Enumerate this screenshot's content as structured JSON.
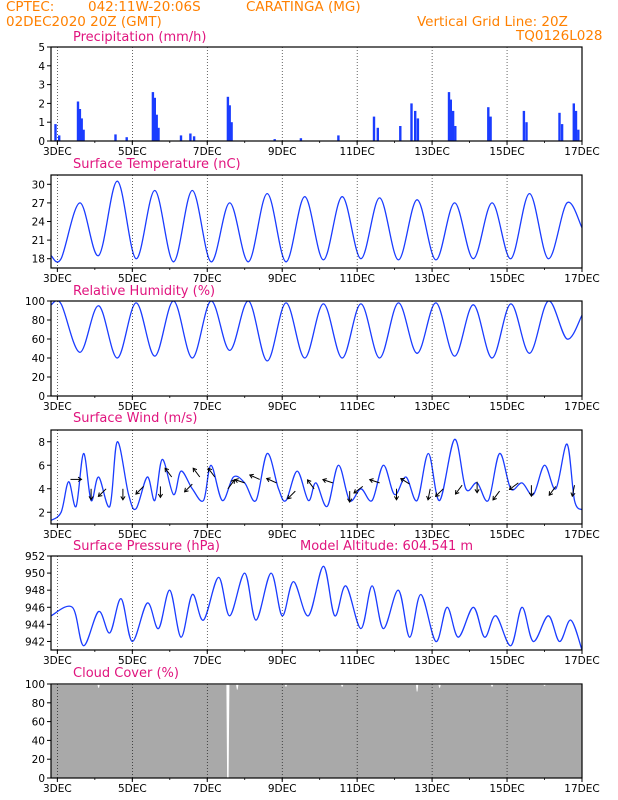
{
  "header": {
    "source": "CPTEC:",
    "coords": "042:11W-20:06S",
    "station": "CARATINGA (MG)",
    "init_time": "02DEC2020 20Z (GMT)",
    "grid_note": "Vertical Grid Line: 20Z",
    "run_code": "TQ0126L028"
  },
  "colors": {
    "header": "#ff8000",
    "title": "#e0147e",
    "series": "#1a3cff",
    "cloud": "#a9a9a9",
    "grid": "#000000"
  },
  "chart_data": [
    {
      "id": "precip",
      "type": "bar",
      "title": "Precipitation (mm/h)",
      "ylim": [
        0,
        5
      ],
      "yticks": [
        0,
        1,
        2,
        3,
        4,
        5
      ],
      "xticks": [
        "3DEC",
        "5DEC",
        "7DEC",
        "9DEC",
        "11DEC",
        "13DEC",
        "15DEC",
        "17DEC"
      ],
      "xrange_days": [
        2.83,
        17.0
      ],
      "events": [
        {
          "x": 2.95,
          "v": 0.9
        },
        {
          "x": 3.05,
          "v": 0.3
        },
        {
          "x": 3.55,
          "v": 2.1
        },
        {
          "x": 3.6,
          "v": 1.7
        },
        {
          "x": 3.65,
          "v": 1.2
        },
        {
          "x": 3.7,
          "v": 0.6
        },
        {
          "x": 4.55,
          "v": 0.35
        },
        {
          "x": 4.85,
          "v": 0.2
        },
        {
          "x": 5.55,
          "v": 2.6
        },
        {
          "x": 5.6,
          "v": 2.3
        },
        {
          "x": 5.65,
          "v": 1.4
        },
        {
          "x": 5.7,
          "v": 0.7
        },
        {
          "x": 6.3,
          "v": 0.3
        },
        {
          "x": 6.55,
          "v": 0.4
        },
        {
          "x": 6.65,
          "v": 0.25
        },
        {
          "x": 7.55,
          "v": 2.35
        },
        {
          "x": 7.6,
          "v": 1.9
        },
        {
          "x": 7.65,
          "v": 1.0
        },
        {
          "x": 8.8,
          "v": 0.1
        },
        {
          "x": 9.5,
          "v": 0.15
        },
        {
          "x": 10.5,
          "v": 0.3
        },
        {
          "x": 11.45,
          "v": 1.3
        },
        {
          "x": 11.55,
          "v": 0.7
        },
        {
          "x": 12.15,
          "v": 0.8
        },
        {
          "x": 12.45,
          "v": 2.0
        },
        {
          "x": 12.55,
          "v": 1.6
        },
        {
          "x": 12.62,
          "v": 1.2
        },
        {
          "x": 13.45,
          "v": 2.6
        },
        {
          "x": 13.5,
          "v": 2.2
        },
        {
          "x": 13.56,
          "v": 1.6
        },
        {
          "x": 13.62,
          "v": 0.8
        },
        {
          "x": 14.5,
          "v": 1.8
        },
        {
          "x": 14.56,
          "v": 1.3
        },
        {
          "x": 15.45,
          "v": 1.6
        },
        {
          "x": 15.52,
          "v": 1.0
        },
        {
          "x": 16.4,
          "v": 1.5
        },
        {
          "x": 16.47,
          "v": 0.9
        },
        {
          "x": 16.78,
          "v": 2.0
        },
        {
          "x": 16.84,
          "v": 1.6
        },
        {
          "x": 16.9,
          "v": 0.6
        }
      ]
    },
    {
      "id": "temperature",
      "type": "line",
      "title": "Surface Temperature (nC)",
      "ylim": [
        16.5,
        31.5
      ],
      "yticks": [
        18,
        21,
        24,
        27,
        30
      ],
      "xticks": [
        "3DEC",
        "5DEC",
        "7DEC",
        "9DEC",
        "11DEC",
        "13DEC",
        "15DEC",
        "17DEC"
      ],
      "xrange_days": [
        2.83,
        17.0
      ],
      "extremes": [
        [
          2.83,
          18.5
        ],
        [
          3.1,
          18.0
        ],
        [
          3.6,
          27.0
        ],
        [
          4.1,
          18.5
        ],
        [
          4.6,
          30.5
        ],
        [
          5.1,
          18.0
        ],
        [
          5.6,
          29.0
        ],
        [
          6.1,
          17.5
        ],
        [
          6.6,
          29.0
        ],
        [
          7.1,
          17.5
        ],
        [
          7.6,
          27.0
        ],
        [
          8.1,
          17.5
        ],
        [
          8.6,
          28.5
        ],
        [
          9.1,
          17.5
        ],
        [
          9.6,
          28.0
        ],
        [
          10.1,
          17.8
        ],
        [
          10.6,
          28.0
        ],
        [
          11.1,
          18.0
        ],
        [
          11.6,
          27.8
        ],
        [
          12.1,
          17.8
        ],
        [
          12.6,
          27.5
        ],
        [
          13.1,
          17.8
        ],
        [
          13.6,
          27.0
        ],
        [
          14.1,
          18.0
        ],
        [
          14.6,
          27.0
        ],
        [
          15.1,
          18.0
        ],
        [
          15.6,
          28.5
        ],
        [
          16.1,
          18.0
        ],
        [
          16.6,
          27.0
        ],
        [
          17.0,
          23.0
        ]
      ]
    },
    {
      "id": "humidity",
      "type": "line",
      "title": "Relative Humidity (%)",
      "ylim": [
        0,
        100
      ],
      "yticks": [
        0,
        20,
        40,
        60,
        80,
        100
      ],
      "xticks": [
        "3DEC",
        "5DEC",
        "7DEC",
        "9DEC",
        "11DEC",
        "13DEC",
        "15DEC",
        "17DEC"
      ],
      "xrange_days": [
        2.83,
        17.0
      ],
      "extremes": [
        [
          2.83,
          96
        ],
        [
          3.1,
          97
        ],
        [
          3.6,
          46
        ],
        [
          4.1,
          95
        ],
        [
          4.6,
          40
        ],
        [
          5.1,
          98
        ],
        [
          5.6,
          42
        ],
        [
          6.1,
          100
        ],
        [
          6.6,
          40
        ],
        [
          7.1,
          100
        ],
        [
          7.6,
          48
        ],
        [
          8.1,
          100
        ],
        [
          8.6,
          37
        ],
        [
          9.1,
          98
        ],
        [
          9.6,
          40
        ],
        [
          10.1,
          97
        ],
        [
          10.6,
          40
        ],
        [
          11.1,
          97
        ],
        [
          11.6,
          40
        ],
        [
          12.1,
          98
        ],
        [
          12.6,
          45
        ],
        [
          13.1,
          98
        ],
        [
          13.6,
          42
        ],
        [
          14.1,
          96
        ],
        [
          14.6,
          40
        ],
        [
          15.1,
          97
        ],
        [
          15.6,
          45
        ],
        [
          16.1,
          100
        ],
        [
          16.6,
          60
        ],
        [
          17.0,
          85
        ]
      ]
    },
    {
      "id": "wind",
      "type": "line",
      "title": "Surface Wind (m/s)",
      "ylim": [
        1,
        9
      ],
      "yticks": [
        2,
        4,
        6,
        8
      ],
      "xticks": [
        "3DEC",
        "5DEC",
        "7DEC",
        "9DEC",
        "11DEC",
        "13DEC",
        "15DEC",
        "17DEC"
      ],
      "xrange_days": [
        2.83,
        17.0
      ],
      "extremes": [
        [
          2.83,
          1.3
        ],
        [
          3.1,
          2.0
        ],
        [
          3.3,
          4.6
        ],
        [
          3.5,
          2.5
        ],
        [
          3.7,
          7.0
        ],
        [
          3.9,
          3.0
        ],
        [
          4.1,
          5.0
        ],
        [
          4.4,
          2.5
        ],
        [
          4.6,
          8.0
        ],
        [
          4.9,
          3.5
        ],
        [
          5.1,
          2.3
        ],
        [
          5.4,
          5.0
        ],
        [
          5.6,
          3.0
        ],
        [
          5.8,
          6.5
        ],
        [
          6.1,
          3.5
        ],
        [
          6.3,
          5.5
        ],
        [
          6.6,
          4.0
        ],
        [
          6.9,
          3.0
        ],
        [
          7.1,
          6.0
        ],
        [
          7.4,
          3.0
        ],
        [
          7.7,
          5.0
        ],
        [
          8.0,
          4.5
        ],
        [
          8.3,
          3.0
        ],
        [
          8.6,
          7.0
        ],
        [
          8.9,
          4.0
        ],
        [
          9.1,
          3.0
        ],
        [
          9.4,
          5.5
        ],
        [
          9.7,
          3.0
        ],
        [
          9.9,
          4.5
        ],
        [
          10.2,
          2.5
        ],
        [
          10.5,
          6.0
        ],
        [
          10.8,
          3.0
        ],
        [
          11.1,
          4.0
        ],
        [
          11.4,
          3.0
        ],
        [
          11.7,
          6.0
        ],
        [
          12.0,
          3.5
        ],
        [
          12.3,
          5.0
        ],
        [
          12.6,
          3.0
        ],
        [
          12.9,
          7.0
        ],
        [
          13.2,
          3.0
        ],
        [
          13.6,
          8.2
        ],
        [
          13.9,
          4.0
        ],
        [
          14.2,
          4.5
        ],
        [
          14.5,
          3.0
        ],
        [
          14.8,
          7.0
        ],
        [
          15.1,
          4.0
        ],
        [
          15.4,
          4.5
        ],
        [
          15.7,
          3.5
        ],
        [
          16.0,
          6.0
        ],
        [
          16.3,
          4.0
        ],
        [
          16.6,
          7.8
        ],
        [
          16.8,
          3.0
        ],
        [
          17.0,
          2.2
        ]
      ],
      "wind_vectors": [
        {
          "x": 3.35,
          "y": 4.8,
          "u": 1.0,
          "v": 0.0
        },
        {
          "x": 3.9,
          "y": 4.0,
          "u": 0.0,
          "v": -1.0
        },
        {
          "x": 4.3,
          "y": 4.0,
          "u": -0.7,
          "v": -0.7
        },
        {
          "x": 4.75,
          "y": 4.0,
          "u": 0.0,
          "v": -1.0
        },
        {
          "x": 5.3,
          "y": 4.2,
          "u": -0.7,
          "v": -0.7
        },
        {
          "x": 5.75,
          "y": 4.2,
          "u": 0.0,
          "v": -1.0
        },
        {
          "x": 6.05,
          "y": 5.0,
          "u": -0.6,
          "v": 0.8
        },
        {
          "x": 6.6,
          "y": 4.4,
          "u": -0.7,
          "v": -0.7
        },
        {
          "x": 6.8,
          "y": 5.0,
          "u": -0.6,
          "v": 0.8
        },
        {
          "x": 7.2,
          "y": 5.0,
          "u": -0.6,
          "v": 0.8
        },
        {
          "x": 7.55,
          "y": 4.0,
          "u": 0.6,
          "v": 0.8
        },
        {
          "x": 8.0,
          "y": 4.5,
          "u": -0.9,
          "v": 0.3
        },
        {
          "x": 8.4,
          "y": 4.8,
          "u": -0.9,
          "v": 0.4
        },
        {
          "x": 8.85,
          "y": 4.5,
          "u": -0.9,
          "v": 0.4
        },
        {
          "x": 9.35,
          "y": 3.8,
          "u": -0.7,
          "v": -0.7
        },
        {
          "x": 9.85,
          "y": 4.0,
          "u": -0.6,
          "v": 0.8
        },
        {
          "x": 10.35,
          "y": 4.5,
          "u": -0.9,
          "v": 0.3
        },
        {
          "x": 10.8,
          "y": 3.8,
          "u": 0.0,
          "v": -1.0
        },
        {
          "x": 11.15,
          "y": 4.2,
          "u": -0.8,
          "v": -0.6
        },
        {
          "x": 11.6,
          "y": 4.5,
          "u": -0.9,
          "v": 0.3
        },
        {
          "x": 12.05,
          "y": 4.0,
          "u": 0.0,
          "v": -1.0
        },
        {
          "x": 12.4,
          "y": 4.4,
          "u": -0.8,
          "v": 0.5
        },
        {
          "x": 12.95,
          "y": 4.0,
          "u": -0.2,
          "v": -1.0
        },
        {
          "x": 13.3,
          "y": 4.0,
          "u": -0.7,
          "v": -0.7
        },
        {
          "x": 13.8,
          "y": 4.3,
          "u": -0.6,
          "v": -0.8
        },
        {
          "x": 14.2,
          "y": 4.6,
          "u": 0.0,
          "v": -1.0
        },
        {
          "x": 14.8,
          "y": 3.8,
          "u": -0.6,
          "v": -0.8
        },
        {
          "x": 15.3,
          "y": 4.5,
          "u": -0.8,
          "v": -0.6
        },
        {
          "x": 15.65,
          "y": 4.3,
          "u": 0.0,
          "v": -1.0
        },
        {
          "x": 16.3,
          "y": 4.2,
          "u": -0.6,
          "v": -0.8
        },
        {
          "x": 16.8,
          "y": 4.3,
          "u": -0.2,
          "v": -1.0
        }
      ]
    },
    {
      "id": "pressure",
      "type": "line",
      "title": "Surface Pressure (hPa)",
      "extra_label": "Model Altitude: 604.541 m",
      "ylim": [
        941,
        952
      ],
      "yticks": [
        942,
        944,
        946,
        948,
        950,
        952
      ],
      "xticks": [
        "3DEC",
        "5DEC",
        "7DEC",
        "9DEC",
        "11DEC",
        "13DEC",
        "15DEC",
        "17DEC"
      ],
      "xrange_days": [
        2.83,
        17.0
      ],
      "extremes": [
        [
          2.83,
          945.0
        ],
        [
          3.4,
          946.0
        ],
        [
          3.7,
          941.5
        ],
        [
          4.1,
          945.5
        ],
        [
          4.4,
          943.0
        ],
        [
          4.7,
          947.0
        ],
        [
          5.0,
          942.0
        ],
        [
          5.4,
          946.5
        ],
        [
          5.7,
          943.5
        ],
        [
          6.0,
          948.0
        ],
        [
          6.3,
          942.5
        ],
        [
          6.6,
          947.5
        ],
        [
          6.9,
          944.5
        ],
        [
          7.3,
          949.5
        ],
        [
          7.6,
          945.0
        ],
        [
          8.0,
          950.0
        ],
        [
          8.3,
          944.5
        ],
        [
          8.7,
          950.0
        ],
        [
          9.0,
          945.0
        ],
        [
          9.3,
          949.0
        ],
        [
          9.7,
          945.0
        ],
        [
          10.1,
          950.8
        ],
        [
          10.4,
          945.0
        ],
        [
          10.7,
          948.5
        ],
        [
          11.1,
          943.5
        ],
        [
          11.4,
          948.5
        ],
        [
          11.7,
          943.5
        ],
        [
          12.1,
          948.0
        ],
        [
          12.4,
          942.5
        ],
        [
          12.7,
          947.5
        ],
        [
          13.1,
          942.0
        ],
        [
          13.4,
          946.0
        ],
        [
          13.7,
          942.5
        ],
        [
          14.1,
          946.0
        ],
        [
          14.4,
          942.5
        ],
        [
          14.7,
          945.0
        ],
        [
          15.1,
          941.5
        ],
        [
          15.4,
          946.0
        ],
        [
          15.7,
          942.0
        ],
        [
          16.1,
          945.0
        ],
        [
          16.4,
          942.0
        ],
        [
          16.7,
          944.5
        ],
        [
          17.0,
          941.0
        ]
      ]
    },
    {
      "id": "cloud",
      "type": "area",
      "title": "Cloud Cover (%)",
      "ylim": [
        0,
        100
      ],
      "yticks": [
        0,
        20,
        40,
        60,
        80,
        100
      ],
      "xticks": [
        "3DEC",
        "5DEC",
        "7DEC",
        "9DEC",
        "11DEC",
        "13DEC",
        "15DEC",
        "17DEC"
      ],
      "xrange_days": [
        2.83,
        17.0
      ],
      "base_value": 99,
      "dips": [
        {
          "x": 4.1,
          "v": 96
        },
        {
          "x": 7.55,
          "v": 0
        },
        {
          "x": 7.8,
          "v": 94
        },
        {
          "x": 9.1,
          "v": 97
        },
        {
          "x": 10.6,
          "v": 97
        },
        {
          "x": 12.6,
          "v": 92
        },
        {
          "x": 13.2,
          "v": 96
        },
        {
          "x": 14.6,
          "v": 97
        },
        {
          "x": 16.0,
          "v": 98
        }
      ]
    }
  ]
}
